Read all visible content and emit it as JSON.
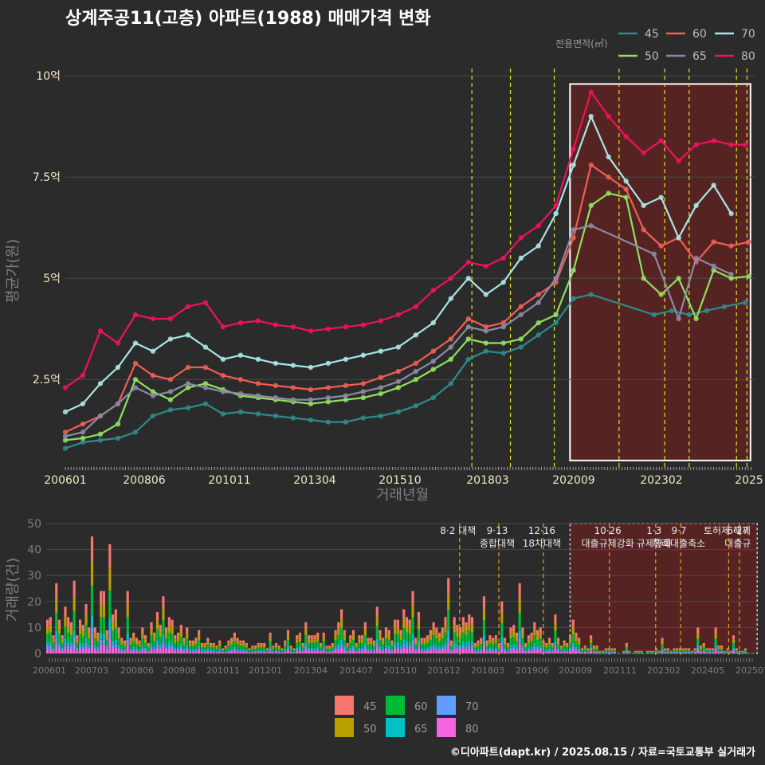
{
  "title": "상계주공11(고층) 아파트(1988) 매매가격 변화",
  "credit": "©디아파트(dapt.kr) / 2025.08.15 / 자료=국토교통부 실거래가",
  "colors": {
    "background": "#2b2b2b",
    "grid": "#4a4a4a",
    "highlight_fill": "#5e2222",
    "s45": "#2e8b8b",
    "s50": "#90e060",
    "s60": "#f05e54",
    "s65": "#8a8aa6",
    "s70": "#a8e6e6",
    "s80": "#f0125c",
    "v45": "#f8766d",
    "v50": "#b8a000",
    "v60": "#00ba38",
    "v65": "#00c0c8",
    "v70": "#619cff",
    "v80": "#f564e3"
  },
  "chart_data": [
    {
      "type": "line",
      "title": "상계주공11(고층) 아파트(1988) 매매가격 변화",
      "xlabel": "거래년월",
      "ylabel": "평균가(원)",
      "x_tick_labels": [
        "200601",
        "200806",
        "201011",
        "201304",
        "201510",
        "201803",
        "202009",
        "202302",
        "2025"
      ],
      "y_tick_labels": [
        "2.5억",
        "5억",
        "7.5억",
        "10억"
      ],
      "y_tick_values": [
        2.5,
        5,
        7.5,
        10
      ],
      "ylim": [
        0.3,
        10.3
      ],
      "y_unit": "억",
      "legend_title": "전용면적(㎡)",
      "legend_position": "top-right",
      "series": [
        {
          "name": "45",
          "x": [
            2006.0,
            2006.5,
            2007.0,
            2007.5,
            2008.0,
            2008.5,
            2009.0,
            2009.5,
            2010.0,
            2010.5,
            2011.0,
            2011.5,
            2012.0,
            2012.5,
            2013.0,
            2013.5,
            2014.0,
            2014.5,
            2015.0,
            2015.5,
            2016.0,
            2016.5,
            2017.0,
            2017.5,
            2018.0,
            2018.5,
            2019.0,
            2019.5,
            2020.0,
            2020.5,
            2021.0,
            2022.8,
            2023.3,
            2023.8,
            2024.3,
            2024.8,
            2025.4
          ],
          "values": [
            0.8,
            0.95,
            1.0,
            1.05,
            1.2,
            1.6,
            1.75,
            1.8,
            1.9,
            1.65,
            1.7,
            1.65,
            1.6,
            1.55,
            1.5,
            1.45,
            1.45,
            1.55,
            1.6,
            1.7,
            1.85,
            2.05,
            2.4,
            3.0,
            3.2,
            3.15,
            3.3,
            3.6,
            3.9,
            4.5,
            4.6,
            4.1,
            4.2,
            4.1,
            4.2,
            4.3,
            4.4
          ]
        },
        {
          "name": "50",
          "x": [
            2006.0,
            2006.5,
            2007.0,
            2007.5,
            2008.0,
            2008.5,
            2009.0,
            2009.5,
            2010.0,
            2010.5,
            2011.0,
            2011.5,
            2012.0,
            2012.5,
            2013.0,
            2013.5,
            2014.0,
            2014.5,
            2015.0,
            2015.5,
            2016.0,
            2016.5,
            2017.0,
            2017.5,
            2018.0,
            2018.5,
            2019.0,
            2019.5,
            2020.0,
            2020.5,
            2021.0,
            2021.5,
            2022.0,
            2022.5,
            2023.0,
            2023.5,
            2024.0,
            2024.5,
            2025.0,
            2025.5
          ],
          "values": [
            1.0,
            1.05,
            1.15,
            1.4,
            2.5,
            2.2,
            2.0,
            2.3,
            2.4,
            2.25,
            2.1,
            2.05,
            2.0,
            1.95,
            1.9,
            1.95,
            2.0,
            2.05,
            2.15,
            2.3,
            2.5,
            2.75,
            3.0,
            3.5,
            3.4,
            3.4,
            3.5,
            3.9,
            4.1,
            5.2,
            6.8,
            7.1,
            7.0,
            5.0,
            4.6,
            5.0,
            4.0,
            5.2,
            5.0,
            5.05
          ]
        },
        {
          "name": "60",
          "x": [
            2006.0,
            2006.5,
            2007.0,
            2007.5,
            2008.0,
            2008.5,
            2009.0,
            2009.5,
            2010.0,
            2010.5,
            2011.0,
            2011.5,
            2012.0,
            2012.5,
            2013.0,
            2013.5,
            2014.0,
            2014.5,
            2015.0,
            2015.5,
            2016.0,
            2016.5,
            2017.0,
            2017.5,
            2018.0,
            2018.5,
            2019.0,
            2019.5,
            2020.0,
            2020.5,
            2021.0,
            2021.5,
            2022.0,
            2022.5,
            2023.0,
            2023.5,
            2024.0,
            2024.5,
            2025.0,
            2025.5
          ],
          "values": [
            1.2,
            1.4,
            1.6,
            1.9,
            2.9,
            2.6,
            2.5,
            2.8,
            2.8,
            2.6,
            2.5,
            2.4,
            2.35,
            2.3,
            2.25,
            2.3,
            2.35,
            2.4,
            2.55,
            2.7,
            2.9,
            3.2,
            3.5,
            4.0,
            3.8,
            3.9,
            4.3,
            4.6,
            4.9,
            6.0,
            7.8,
            7.5,
            7.2,
            6.2,
            5.8,
            6.0,
            5.4,
            5.9,
            5.8,
            5.9
          ]
        },
        {
          "name": "65",
          "x": [
            2006.0,
            2006.5,
            2007.0,
            2007.5,
            2008.0,
            2008.5,
            2009.0,
            2009.5,
            2010.0,
            2010.5,
            2011.0,
            2011.5,
            2012.0,
            2012.5,
            2013.0,
            2013.5,
            2014.0,
            2014.5,
            2015.0,
            2015.5,
            2016.0,
            2016.5,
            2017.0,
            2017.5,
            2018.0,
            2018.5,
            2019.0,
            2019.5,
            2020.0,
            2020.5,
            2021.0,
            2022.8,
            2023.5,
            2024.0,
            2024.5,
            2025.0
          ],
          "values": [
            1.1,
            1.2,
            1.6,
            1.9,
            2.3,
            2.1,
            2.2,
            2.4,
            2.3,
            2.2,
            2.15,
            2.1,
            2.05,
            2.0,
            2.0,
            2.05,
            2.1,
            2.2,
            2.3,
            2.45,
            2.7,
            2.95,
            3.3,
            3.8,
            3.7,
            3.8,
            4.1,
            4.4,
            5.0,
            6.2,
            6.3,
            5.6,
            4.0,
            5.5,
            5.3,
            5.1
          ]
        },
        {
          "name": "70",
          "x": [
            2006.0,
            2006.5,
            2007.0,
            2007.5,
            2008.0,
            2008.5,
            2009.0,
            2009.5,
            2010.0,
            2010.5,
            2011.0,
            2011.5,
            2012.0,
            2012.5,
            2013.0,
            2013.5,
            2014.0,
            2014.5,
            2015.0,
            2015.5,
            2016.0,
            2016.5,
            2017.0,
            2017.5,
            2018.0,
            2018.5,
            2019.0,
            2019.5,
            2020.0,
            2020.5,
            2021.0,
            2021.5,
            2022.0,
            2022.5,
            2023.0,
            2023.5,
            2024.0,
            2024.5,
            2025.0
          ],
          "values": [
            1.7,
            1.9,
            2.4,
            2.8,
            3.4,
            3.2,
            3.5,
            3.6,
            3.3,
            3.0,
            3.1,
            3.0,
            2.9,
            2.85,
            2.8,
            2.9,
            3.0,
            3.1,
            3.2,
            3.3,
            3.6,
            3.9,
            4.5,
            5.0,
            4.6,
            4.9,
            5.5,
            5.8,
            6.6,
            7.8,
            9.0,
            8.0,
            7.4,
            6.8,
            7.0,
            6.0,
            6.8,
            7.3,
            6.6
          ]
        },
        {
          "name": "80",
          "x": [
            2006.0,
            2006.5,
            2007.0,
            2007.5,
            2008.0,
            2008.5,
            2009.0,
            2009.5,
            2010.0,
            2010.5,
            2011.0,
            2011.5,
            2012.0,
            2012.5,
            2013.0,
            2013.5,
            2014.0,
            2014.5,
            2015.0,
            2015.5,
            2016.0,
            2016.5,
            2017.0,
            2017.5,
            2018.0,
            2018.5,
            2019.0,
            2019.5,
            2020.0,
            2020.5,
            2021.0,
            2021.5,
            2022.0,
            2022.5,
            2023.0,
            2023.5,
            2024.0,
            2024.5,
            2025.0,
            2025.4
          ],
          "values": [
            2.3,
            2.6,
            3.7,
            3.4,
            4.1,
            4.0,
            4.0,
            4.3,
            4.4,
            3.8,
            3.9,
            3.95,
            3.85,
            3.8,
            3.7,
            3.75,
            3.8,
            3.85,
            3.95,
            4.1,
            4.3,
            4.7,
            5.0,
            5.4,
            5.3,
            5.5,
            6.0,
            6.3,
            6.8,
            8.2,
            9.6,
            9.0,
            8.5,
            8.1,
            8.4,
            7.9,
            8.3,
            8.4,
            8.3,
            8.3
          ]
        }
      ],
      "highlight_region": {
        "x_range": [
          2020.4,
          2025.55
        ],
        "y_range": [
          0.5,
          9.8
        ]
      },
      "event_lines_x": [
        2017.6,
        2018.7,
        2019.95,
        2021.8,
        2023.1,
        2023.8,
        2025.15,
        2025.45
      ]
    },
    {
      "type": "bar",
      "stacked": true,
      "ylabel": "거래량(건)",
      "x_tick_labels": [
        "200601",
        "200703",
        "200806",
        "200908",
        "201011",
        "201201",
        "201304",
        "201407",
        "201510",
        "201612",
        "201803",
        "201906",
        "202009",
        "202111",
        "202302",
        "202405",
        "202507"
      ],
      "y_tick_labels": [
        "0",
        "10",
        "20",
        "30",
        "40",
        "50"
      ],
      "ylim": [
        0,
        50
      ],
      "series_names": [
        "45",
        "50",
        "60",
        "65",
        "70",
        "80"
      ],
      "annual_volume": {
        "years": [
          2006,
          2007,
          2008,
          2009,
          2010,
          2011,
          2012,
          2013,
          2014,
          2015,
          2016,
          2017,
          2018,
          2019,
          2020,
          2021,
          2022,
          2023,
          2024,
          2025
        ],
        "typical_month": [
          16,
          20,
          10,
          14,
          5,
          5,
          4,
          7,
          11,
          13,
          14,
          12,
          6,
          10,
          7,
          3,
          1,
          2,
          3,
          2
        ],
        "peak_month": [
          30,
          50,
          27,
          24,
          10,
          8,
          10,
          15,
          20,
          22,
          27,
          33,
          22,
          28,
          15,
          8,
          4,
          7,
          11,
          7
        ]
      },
      "highlight_region": {
        "x_range": [
          2020.7,
          2025.95
        ]
      },
      "events": [
        {
          "label": "8·2 대책",
          "x": 2017.6
        },
        {
          "label": "9·13",
          "x": 2018.7
        },
        {
          "label": "종합대책",
          "x": 2018.7
        },
        {
          "label": "12·16",
          "x": 2019.95
        },
        {
          "label": "18차대책",
          "x": 2019.95
        },
        {
          "label": "10·26",
          "x": 2021.8
        },
        {
          "label": "대출규제강화",
          "x": 2021.8
        },
        {
          "label": "1·3",
          "x": 2023.1
        },
        {
          "label": "규제완화",
          "x": 2023.1
        },
        {
          "label": "9·7",
          "x": 2023.8
        },
        {
          "label": "특례대출축소",
          "x": 2023.8
        },
        {
          "label": "토허제 해제",
          "x": 2025.15
        },
        {
          "label": "6·27",
          "x": 2025.45
        },
        {
          "label": "대출규",
          "x": 2025.45
        }
      ]
    }
  ]
}
